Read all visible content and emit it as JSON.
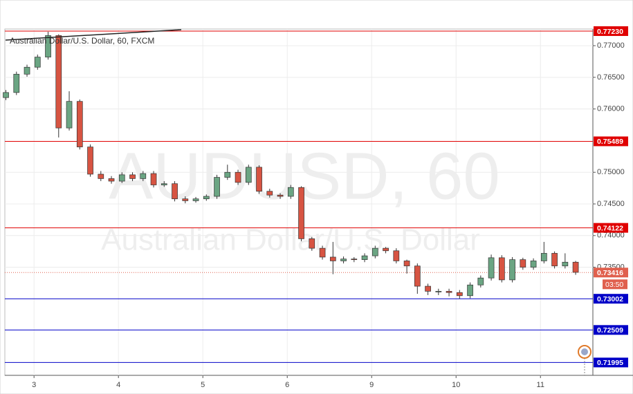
{
  "chart_data": {
    "type": "candlestick",
    "title": "Australian Dollar/U.S. Dollar, 60, FXCM",
    "watermark": "AUDUSD, 60",
    "watermark_subtitle": "Australian Dollar/U.S. Dollar",
    "up_color": "#6ba583",
    "down_color": "#d75442",
    "x": [
      -8,
      -5,
      -2,
      1,
      4,
      7,
      10,
      13,
      16,
      19,
      22,
      25,
      28,
      31,
      34,
      37,
      40,
      43,
      46,
      49,
      52,
      55,
      58,
      61,
      64,
      67,
      70,
      73,
      76,
      79,
      82,
      85,
      88,
      91,
      94,
      97,
      100,
      103,
      106,
      109,
      112,
      115,
      118,
      121,
      124,
      127,
      130,
      133,
      136,
      139,
      142,
      145,
      148,
      151,
      154
    ],
    "open": [
      0.7618,
      0.7626,
      0.7655,
      0.7666,
      0.7682,
      0.7716,
      0.757,
      0.7612,
      0.754,
      0.7497,
      0.749,
      0.7486,
      0.7496,
      0.749,
      0.7498,
      0.748,
      0.7482,
      0.7458,
      0.7455,
      0.7458,
      0.7462,
      0.7492,
      0.75,
      0.7484,
      0.7508,
      0.747,
      0.7464,
      0.7462,
      0.7476,
      0.7395,
      0.738,
      0.7366,
      0.736,
      0.7363,
      0.7362,
      0.7368,
      0.738,
      0.7376,
      0.736,
      0.7352,
      0.732,
      0.7312,
      0.7312,
      0.731,
      0.7305,
      0.7322,
      0.7333,
      0.7365,
      0.733,
      0.7362,
      0.735,
      0.736,
      0.7372,
      0.7352,
      0.7358
    ],
    "high": [
      0.763,
      0.7659,
      0.767,
      0.7686,
      0.7722,
      0.7718,
      0.7628,
      0.7615,
      0.7544,
      0.7502,
      0.7494,
      0.75,
      0.75,
      0.7502,
      0.7502,
      0.7486,
      0.7486,
      0.7462,
      0.7461,
      0.7465,
      0.7496,
      0.7512,
      0.7504,
      0.7512,
      0.7511,
      0.7474,
      0.7467,
      0.748,
      0.7478,
      0.7398,
      0.7384,
      0.739,
      0.7367,
      0.7366,
      0.7372,
      0.7384,
      0.7382,
      0.738,
      0.7362,
      0.7356,
      0.7324,
      0.7316,
      0.7316,
      0.7314,
      0.7326,
      0.7337,
      0.737,
      0.7369,
      0.7366,
      0.7365,
      0.7364,
      0.739,
      0.7375,
      0.7372,
      0.736
    ],
    "low": [
      0.7614,
      0.7622,
      0.7651,
      0.7662,
      0.7678,
      0.7555,
      0.7566,
      0.7536,
      0.7493,
      0.7486,
      0.7482,
      0.7483,
      0.7486,
      0.7486,
      0.7476,
      0.7477,
      0.7454,
      0.7451,
      0.7452,
      0.7455,
      0.7458,
      0.7488,
      0.748,
      0.748,
      0.7466,
      0.746,
      0.7458,
      0.7458,
      0.7391,
      0.7376,
      0.7362,
      0.7339,
      0.7356,
      0.7358,
      0.7358,
      0.7364,
      0.7372,
      0.7356,
      0.734,
      0.7308,
      0.7306,
      0.7306,
      0.7304,
      0.73,
      0.7301,
      0.7318,
      0.7329,
      0.7326,
      0.7326,
      0.7346,
      0.7346,
      0.7356,
      0.7348,
      0.7348,
      0.7338
    ],
    "close": [
      0.7626,
      0.7655,
      0.7666,
      0.7682,
      0.7716,
      0.757,
      0.7612,
      0.754,
      0.7497,
      0.749,
      0.7486,
      0.7496,
      0.749,
      0.7498,
      0.748,
      0.7482,
      0.7458,
      0.7455,
      0.7458,
      0.7462,
      0.7492,
      0.75,
      0.7484,
      0.7508,
      0.747,
      0.7464,
      0.7462,
      0.7476,
      0.7395,
      0.738,
      0.7366,
      0.736,
      0.7363,
      0.7362,
      0.7368,
      0.738,
      0.7376,
      0.736,
      0.7352,
      0.732,
      0.7312,
      0.7312,
      0.731,
      0.7305,
      0.7322,
      0.7333,
      0.7365,
      0.733,
      0.7362,
      0.735,
      0.736,
      0.7372,
      0.7352,
      0.7358,
      0.7342
    ],
    "xlim": [
      -8.3,
      158.9
    ],
    "xticks": [
      {
        "value": 0,
        "label": "3"
      },
      {
        "value": 24,
        "label": "4"
      },
      {
        "value": 48,
        "label": "5"
      },
      {
        "value": 72,
        "label": "6"
      },
      {
        "value": 96,
        "label": "9"
      },
      {
        "value": 120,
        "label": "10"
      },
      {
        "value": 144,
        "label": "11"
      }
    ],
    "ylim": [
      0.71792,
      0.77263
    ],
    "yticks": [
      {
        "value": 0.77,
        "label": "0.77000"
      },
      {
        "value": 0.765,
        "label": "0.76500"
      },
      {
        "value": 0.76,
        "label": "0.76000"
      },
      {
        "value": 0.75,
        "label": "0.75000"
      },
      {
        "value": 0.745,
        "label": "0.74500"
      },
      {
        "value": 0.74,
        "label": "0.74000"
      },
      {
        "value": 0.735,
        "label": "0.73500"
      }
    ],
    "grid": true,
    "levels": [
      {
        "value": 0.7723,
        "label": "0.77230",
        "color": "#e00000"
      },
      {
        "value": 0.75489,
        "label": "0.75489",
        "color": "#e00000"
      },
      {
        "value": 0.74122,
        "label": "0.74122",
        "color": "#e00000"
      },
      {
        "value": 0.73002,
        "label": "0.73002",
        "color": "#0000c8"
      },
      {
        "value": 0.72509,
        "label": "0.72509",
        "color": "#0000c8"
      },
      {
        "value": 0.71995,
        "label": "0.71995",
        "color": "#0000c8"
      }
    ],
    "last_price": {
      "value": 0.73416,
      "label": "0.73416",
      "color": "#e0604e"
    },
    "countdown": "03:50"
  }
}
